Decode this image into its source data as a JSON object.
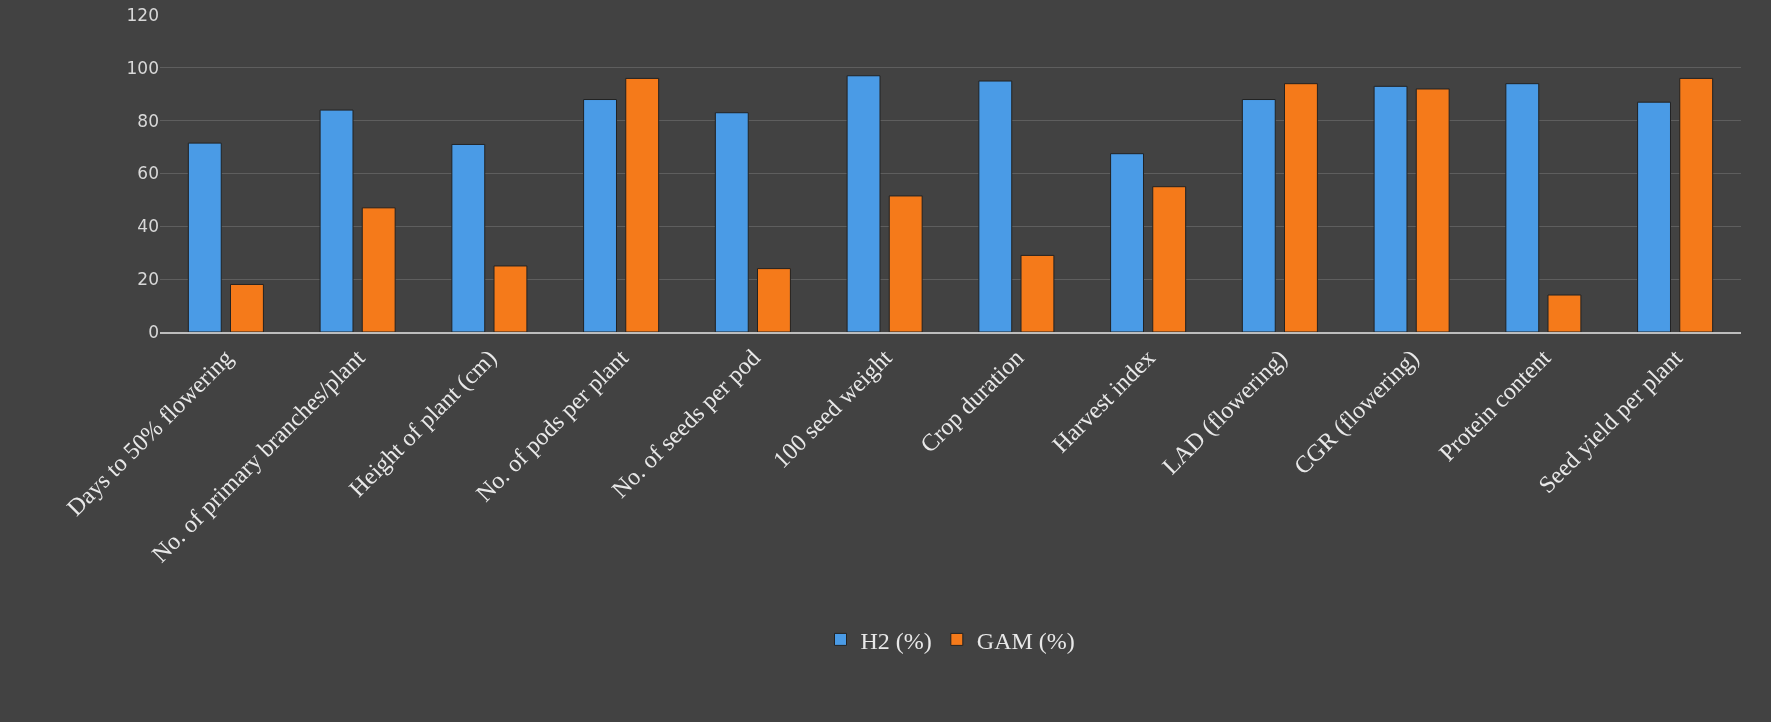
{
  "chart_data": {
    "type": "bar",
    "categories": [
      "Days to 50% flowering",
      "No. of primary branches/plant",
      "Height of plant (cm)",
      "No. of pods per plant",
      "No. of seeds per pod",
      "100 seed weight",
      "Crop duration",
      "Harvest index",
      "LAD (flowering)",
      "CGR (flowering)",
      "Protein content",
      "Seed yield per plant"
    ],
    "series": [
      {
        "name": "H2 (%)",
        "color": "#4a9be6",
        "values": [
          71.5,
          84,
          71,
          88,
          83,
          97,
          95,
          67.5,
          88,
          93,
          94,
          87
        ]
      },
      {
        "name": "GAM (%)",
        "color": "#f57a1a",
        "values": [
          18,
          47,
          25,
          96,
          24,
          51.5,
          29,
          55,
          94,
          92,
          14,
          96
        ]
      }
    ],
    "ylim": [
      0,
      120
    ],
    "yticks": [
      0,
      20,
      40,
      60,
      80,
      100,
      120
    ],
    "grid": "y",
    "legend": "bottom"
  }
}
